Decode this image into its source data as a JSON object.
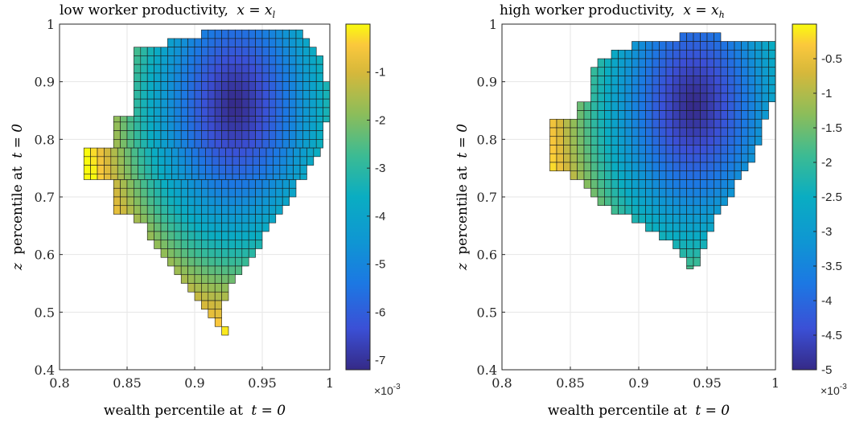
{
  "chart_data": [
    {
      "type": "heatmap",
      "title": "low worker productivity, x = x_l",
      "title_main": "low worker productivity,",
      "title_math": "x = x",
      "title_sub": "l",
      "xlabel_text": "wealth percentile at",
      "xlabel_math": "t = 0",
      "ylabel_text": "percentile at",
      "ylabel_var": "z",
      "ylabel_math": "t = 0",
      "xlim": [
        0.8,
        1.0
      ],
      "ylim": [
        0.4,
        1.0
      ],
      "xticks": [
        "0.8",
        "0.85",
        "0.9",
        "0.95",
        "1"
      ],
      "yticks": [
        "0.4",
        "0.5",
        "0.6",
        "0.7",
        "0.8",
        "0.9",
        "1"
      ],
      "colorbar": {
        "range": [
          -0.0072,
          0.0
        ],
        "ticks": [
          "-1",
          "-2",
          "-3",
          "-4",
          "-5",
          "-6",
          "-7"
        ],
        "tick_values": [
          -1,
          -2,
          -3,
          -4,
          -5,
          -6,
          -7
        ],
        "multiplier_base": "×10",
        "multiplier_exp": "-3"
      },
      "rows": [
        {
          "y": [
            0.975,
            0.99
          ],
          "x": [
            0.905,
            0.98
          ]
        },
        {
          "y": [
            0.96,
            0.975
          ],
          "x": [
            0.88,
            0.985
          ]
        },
        {
          "y": [
            0.945,
            0.96
          ],
          "x": [
            0.855,
            0.99
          ]
        },
        {
          "y": [
            0.93,
            0.945
          ],
          "x": [
            0.855,
            0.995
          ]
        },
        {
          "y": [
            0.915,
            0.93
          ],
          "x": [
            0.855,
            0.995
          ]
        },
        {
          "y": [
            0.9,
            0.915
          ],
          "x": [
            0.855,
            0.995
          ]
        },
        {
          "y": [
            0.885,
            0.9
          ],
          "x": [
            0.855,
            1.0
          ]
        },
        {
          "y": [
            0.87,
            0.885
          ],
          "x": [
            0.855,
            1.0
          ]
        },
        {
          "y": [
            0.855,
            0.87
          ],
          "x": [
            0.855,
            1.0
          ]
        },
        {
          "y": [
            0.84,
            0.855
          ],
          "x": [
            0.855,
            1.0
          ]
        },
        {
          "y": [
            0.83,
            0.84
          ],
          "x": [
            0.84,
            1.0
          ]
        },
        {
          "y": [
            0.815,
            0.83
          ],
          "x": [
            0.84,
            0.995
          ]
        },
        {
          "y": [
            0.8,
            0.815
          ],
          "x": [
            0.84,
            0.995
          ]
        },
        {
          "y": [
            0.785,
            0.8
          ],
          "x": [
            0.84,
            0.995
          ]
        },
        {
          "y": [
            0.77,
            0.785
          ],
          "x": [
            0.818,
            0.99
          ]
        },
        {
          "y": [
            0.755,
            0.77
          ],
          "x": [
            0.818,
            0.985
          ]
        },
        {
          "y": [
            0.74,
            0.755
          ],
          "x": [
            0.818,
            0.98
          ]
        },
        {
          "y": [
            0.73,
            0.74
          ],
          "x": [
            0.818,
            0.98
          ]
        },
        {
          "y": [
            0.715,
            0.73
          ],
          "x": [
            0.84,
            0.975
          ]
        },
        {
          "y": [
            0.7,
            0.715
          ],
          "x": [
            0.84,
            0.975
          ]
        },
        {
          "y": [
            0.685,
            0.7
          ],
          "x": [
            0.84,
            0.97
          ]
        },
        {
          "y": [
            0.67,
            0.685
          ],
          "x": [
            0.84,
            0.965
          ]
        },
        {
          "y": [
            0.655,
            0.67
          ],
          "x": [
            0.855,
            0.96
          ]
        },
        {
          "y": [
            0.64,
            0.655
          ],
          "x": [
            0.865,
            0.955
          ]
        },
        {
          "y": [
            0.625,
            0.64
          ],
          "x": [
            0.865,
            0.95
          ]
        },
        {
          "y": [
            0.61,
            0.625
          ],
          "x": [
            0.87,
            0.95
          ]
        },
        {
          "y": [
            0.595,
            0.61
          ],
          "x": [
            0.875,
            0.945
          ]
        },
        {
          "y": [
            0.58,
            0.595
          ],
          "x": [
            0.88,
            0.94
          ]
        },
        {
          "y": [
            0.565,
            0.58
          ],
          "x": [
            0.885,
            0.935
          ]
        },
        {
          "y": [
            0.55,
            0.565
          ],
          "x": [
            0.89,
            0.93
          ]
        },
        {
          "y": [
            0.535,
            0.55
          ],
          "x": [
            0.895,
            0.925
          ]
        },
        {
          "y": [
            0.52,
            0.535
          ],
          "x": [
            0.9,
            0.925
          ]
        },
        {
          "y": [
            0.505,
            0.52
          ],
          "x": [
            0.905,
            0.92
          ]
        },
        {
          "y": [
            0.49,
            0.505
          ],
          "x": [
            0.91,
            0.92
          ]
        },
        {
          "y": [
            0.475,
            0.49
          ],
          "x": [
            0.915,
            0.915
          ]
        },
        {
          "y": [
            0.46,
            0.475
          ],
          "x": [
            0.92,
            0.915
          ]
        }
      ],
      "value_peak": {
        "x": 0.93,
        "y": 0.86,
        "min": -0.0072
      }
    },
    {
      "type": "heatmap",
      "title": "high worker productivity, x = x_h",
      "title_main": "high worker productivity,",
      "title_math": "x = x",
      "title_sub": "h",
      "xlabel_text": "wealth percentile at",
      "xlabel_math": "t = 0",
      "ylabel_text": "percentile at",
      "ylabel_var": "z",
      "ylabel_math": "t = 0",
      "xlim": [
        0.8,
        1.0
      ],
      "ylim": [
        0.4,
        1.0
      ],
      "xticks": [
        "0.8",
        "0.85",
        "0.9",
        "0.95",
        "1"
      ],
      "yticks": [
        "0.4",
        "0.5",
        "0.6",
        "0.7",
        "0.8",
        "0.9",
        "1"
      ],
      "colorbar": {
        "range": [
          -0.005,
          0.0
        ],
        "ticks": [
          "-0.5",
          "-1",
          "-1.5",
          "-2",
          "-2.5",
          "-3",
          "-3.5",
          "-4",
          "-4.5",
          "-5"
        ],
        "tick_values": [
          -0.5,
          -1,
          -1.5,
          -2,
          -2.5,
          -3,
          -3.5,
          -4,
          -4.5,
          -5
        ],
        "multiplier_base": "×10",
        "multiplier_exp": "-3"
      },
      "rows": [
        {
          "y": [
            0.97,
            0.985
          ],
          "x": [
            0.93,
            0.96
          ]
        },
        {
          "y": [
            0.955,
            0.97
          ],
          "x": [
            0.895,
            1.0
          ]
        },
        {
          "y": [
            0.94,
            0.955
          ],
          "x": [
            0.88,
            1.0
          ]
        },
        {
          "y": [
            0.925,
            0.94
          ],
          "x": [
            0.87,
            1.0
          ]
        },
        {
          "y": [
            0.91,
            0.925
          ],
          "x": [
            0.865,
            1.0
          ]
        },
        {
          "y": [
            0.895,
            0.91
          ],
          "x": [
            0.865,
            1.0
          ]
        },
        {
          "y": [
            0.88,
            0.895
          ],
          "x": [
            0.865,
            1.0
          ]
        },
        {
          "y": [
            0.865,
            0.88
          ],
          "x": [
            0.865,
            1.0
          ]
        },
        {
          "y": [
            0.85,
            0.865
          ],
          "x": [
            0.855,
            0.995
          ]
        },
        {
          "y": [
            0.835,
            0.85
          ],
          "x": [
            0.855,
            0.995
          ]
        },
        {
          "y": [
            0.82,
            0.835
          ],
          "x": [
            0.835,
            0.99
          ]
        },
        {
          "y": [
            0.805,
            0.82
          ],
          "x": [
            0.835,
            0.99
          ]
        },
        {
          "y": [
            0.79,
            0.805
          ],
          "x": [
            0.835,
            0.99
          ]
        },
        {
          "y": [
            0.775,
            0.79
          ],
          "x": [
            0.835,
            0.985
          ]
        },
        {
          "y": [
            0.76,
            0.775
          ],
          "x": [
            0.835,
            0.985
          ]
        },
        {
          "y": [
            0.745,
            0.76
          ],
          "x": [
            0.835,
            0.98
          ]
        },
        {
          "y": [
            0.73,
            0.745
          ],
          "x": [
            0.85,
            0.975
          ]
        },
        {
          "y": [
            0.715,
            0.73
          ],
          "x": [
            0.86,
            0.97
          ]
        },
        {
          "y": [
            0.7,
            0.715
          ],
          "x": [
            0.865,
            0.97
          ]
        },
        {
          "y": [
            0.685,
            0.7
          ],
          "x": [
            0.87,
            0.965
          ]
        },
        {
          "y": [
            0.67,
            0.685
          ],
          "x": [
            0.88,
            0.96
          ]
        },
        {
          "y": [
            0.655,
            0.67
          ],
          "x": [
            0.895,
            0.955
          ]
        },
        {
          "y": [
            0.64,
            0.655
          ],
          "x": [
            0.905,
            0.955
          ]
        },
        {
          "y": [
            0.625,
            0.64
          ],
          "x": [
            0.915,
            0.95
          ]
        },
        {
          "y": [
            0.61,
            0.625
          ],
          "x": [
            0.925,
            0.95
          ]
        },
        {
          "y": [
            0.595,
            0.61
          ],
          "x": [
            0.93,
            0.945
          ]
        },
        {
          "y": [
            0.58,
            0.595
          ],
          "x": [
            0.935,
            0.945
          ]
        },
        {
          "y": [
            0.575,
            0.58
          ],
          "x": [
            0.935,
            0.94
          ]
        }
      ],
      "value_peak": {
        "x": 0.94,
        "y": 0.86,
        "min": -0.005
      }
    }
  ]
}
